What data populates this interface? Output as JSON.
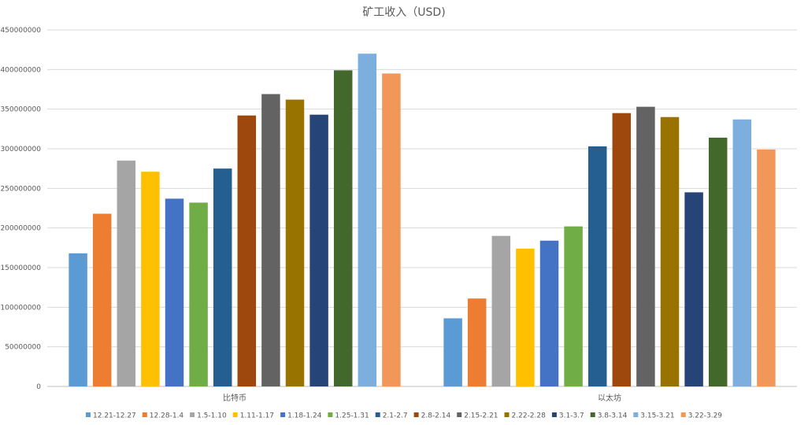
{
  "chart_data": {
    "type": "bar",
    "title": "矿工收入（USD)",
    "categories": [
      "比特币",
      "以太坊"
    ],
    "yticks": [
      "0",
      "50000000",
      "100000000",
      "150000000",
      "200000000",
      "250000000",
      "300000000",
      "350000000",
      "400000000",
      "450000000"
    ],
    "ylim": [
      0,
      450000000
    ],
    "grid": true,
    "legend_position": "bottom",
    "series": [
      {
        "name": "12.21-12.27",
        "color": "#5B9BD5",
        "values": [
          168000000,
          86000000
        ]
      },
      {
        "name": "12.28-1.4",
        "color": "#ED7D31",
        "values": [
          218000000,
          111000000
        ]
      },
      {
        "name": "1.5-1.10",
        "color": "#A5A5A5",
        "values": [
          285000000,
          190000000
        ]
      },
      {
        "name": "1.11-1.17",
        "color": "#FFC000",
        "values": [
          271000000,
          174000000
        ]
      },
      {
        "name": "1.18-1.24",
        "color": "#4472C4",
        "values": [
          237000000,
          184000000
        ]
      },
      {
        "name": "1.25-1.31",
        "color": "#70AD47",
        "values": [
          232000000,
          202000000
        ]
      },
      {
        "name": "2.1-2.7",
        "color": "#255E91",
        "values": [
          275000000,
          303000000
        ]
      },
      {
        "name": "2.8-2.14",
        "color": "#9E480E",
        "values": [
          342000000,
          345000000
        ]
      },
      {
        "name": "2.15-2.21",
        "color": "#636363",
        "values": [
          369000000,
          353000000
        ]
      },
      {
        "name": "2.22-2.28",
        "color": "#997300",
        "values": [
          362000000,
          340000000
        ]
      },
      {
        "name": "3.1-3.7",
        "color": "#264478",
        "values": [
          343000000,
          245000000
        ]
      },
      {
        "name": "3.8-3.14",
        "color": "#43682B",
        "values": [
          399000000,
          314000000
        ]
      },
      {
        "name": "3.15-3.21",
        "color": "#7CAFDD",
        "values": [
          420000000,
          337000000
        ]
      },
      {
        "name": "3.22-3.29",
        "color": "#F1975A",
        "values": [
          395000000,
          299000000
        ]
      }
    ]
  }
}
